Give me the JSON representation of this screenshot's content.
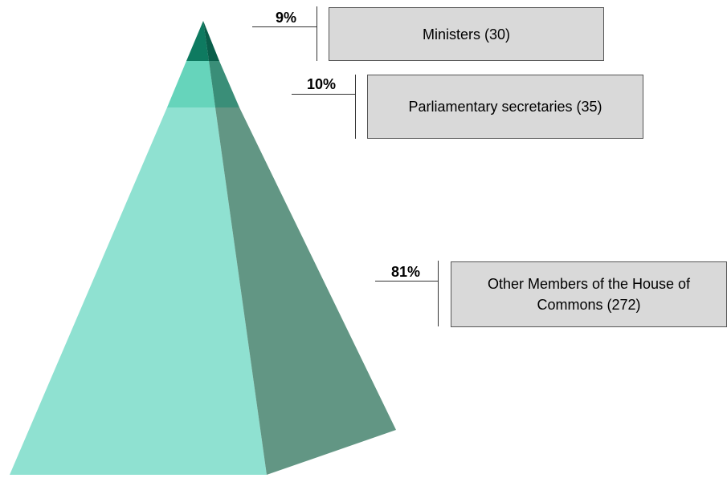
{
  "chart_data": {
    "type": "pyramid",
    "series": [
      {
        "name": "Ministers (30)",
        "count": 30,
        "percent": 9,
        "percent_label": "9%",
        "color": "#0e7a60"
      },
      {
        "name": "Parliamentary secretaries (35)",
        "count": 35,
        "percent": 10,
        "percent_label": "10%",
        "color": "#66d4bb"
      },
      {
        "name": "Other Members of the House of Commons (272)",
        "count": 272,
        "percent": 81,
        "percent_label": "81%",
        "color": "#8fe1d1"
      }
    ],
    "colors": {
      "face_light": "#8fe1d1",
      "face_dark": "#629684",
      "mid_light": "#66d4bb",
      "mid_dark": "#3a8e78",
      "top_light": "#0e7a60",
      "top_dark": "#0a5e4a",
      "label_box": "#d9d9d9"
    }
  }
}
